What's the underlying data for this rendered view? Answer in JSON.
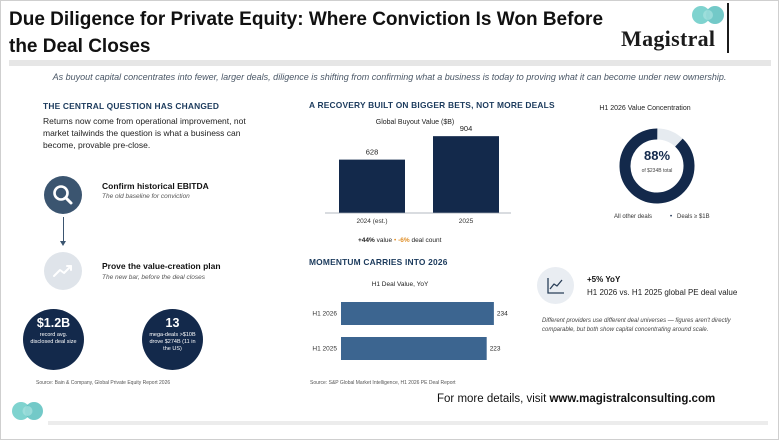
{
  "title": "Due Diligence for Private Equity: Where Conviction Is Won Before the Deal Closes",
  "logo": {
    "text": "Magistral"
  },
  "subtitle": "As buyout capital concentrates into fewer, larger deals, diligence is shifting from confirming what a business is today to proving what it can become under new ownership.",
  "left": {
    "heading": "THE CENTRAL QUESTION HAS CHANGED",
    "body": "Returns now come from operational improvement, not market tailwinds the question is what a business can become, provable pre-close.",
    "steps": [
      {
        "title": "Confirm historical EBITDA",
        "subtitle": "The old baseline for conviction",
        "icon": "search-icon"
      },
      {
        "title": "Prove the value-creation plan",
        "subtitle": "The new bar, before the deal closes",
        "icon": "trend-up-icon"
      }
    ],
    "stats": [
      {
        "big": "$1.2B",
        "small": "record avg. disclosed deal size"
      },
      {
        "big": "13",
        "small": "mega-deals >$10B drove $274B (11 in the US)"
      }
    ],
    "source": "Source: Bain & Company, Global Private Equity Report 2026"
  },
  "middle": {
    "heading": "A RECOVERY BUILT ON BIGGER BETS, NOT MORE DEALS",
    "kpi": {
      "value_pct": "+44%",
      "value_label": "value",
      "sep": "•",
      "count_pct": "-6%",
      "count_label": "deal count"
    },
    "momentum_heading": "MOMENTUM CARRIES INTO 2026",
    "source": "Source: S&P Global Market Intelligence, H1 2026 PE Deal Report"
  },
  "right": {
    "donut_title": "H1 2026 Value Concentration",
    "donut_pct": "88%",
    "donut_sub": "of $234B total",
    "legend_other": "All other deals",
    "legend_bullet": "•",
    "legend_big": "Deals ≥ $1B",
    "donut_share": 0.88,
    "colors": {
      "primary": "#13294b",
      "muted": "#e6ebf0"
    },
    "yoy_title": "+5% YoY",
    "yoy_sub": "H1 2026 vs. H1 2025 global PE deal value",
    "yoy_icon": "line-chart-icon",
    "note": "Different providers use different deal universes — figures aren't directly comparable, but both show capital concentrating around scale."
  },
  "footer": {
    "prefix": "For more details, visit ",
    "url": "www.magistralconsulting.com"
  },
  "chart_data": [
    {
      "type": "bar",
      "title": "Global Buyout Value ($B)",
      "categories": [
        "2024 (est.)",
        "2025"
      ],
      "values": [
        628,
        904
      ],
      "ylim": [
        0,
        1000
      ],
      "color": "#13294b"
    },
    {
      "type": "bar",
      "orientation": "horizontal",
      "title": "H1 Deal Value, YoY",
      "categories": [
        "H1 2026",
        "H1 2025"
      ],
      "values": [
        234,
        223
      ],
      "xlim": [
        0,
        300
      ],
      "color": "#3c6590"
    }
  ]
}
